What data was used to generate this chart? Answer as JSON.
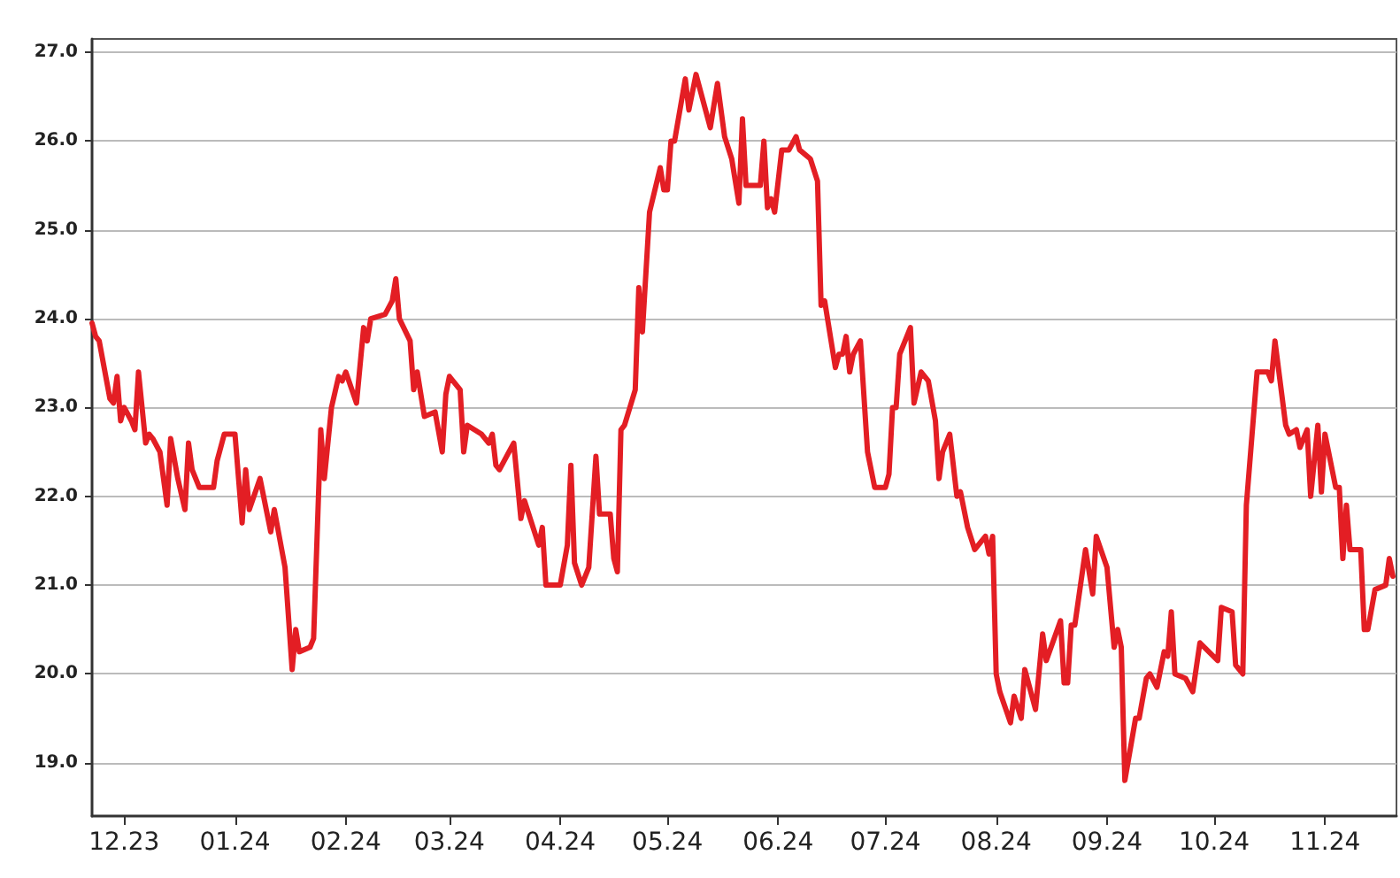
{
  "chart_data": {
    "type": "line",
    "marker": "none",
    "line_style": "solid",
    "grid": "y",
    "xlim": [
      "2023-11-22",
      "2024-11-21"
    ],
    "ylim": [
      18.4,
      27.15
    ],
    "yticks": [
      {
        "value": 19,
        "label": "19.0"
      },
      {
        "value": 20,
        "label": "20.0"
      },
      {
        "value": 21,
        "label": "21.0"
      },
      {
        "value": 22,
        "label": "22.0"
      },
      {
        "value": 23,
        "label": "23.0"
      },
      {
        "value": 24,
        "label": "24.0"
      },
      {
        "value": 25,
        "label": "25.0"
      },
      {
        "value": 26,
        "label": "26.0"
      },
      {
        "value": 27,
        "label": "27.0"
      }
    ],
    "xticks": [
      {
        "value": "2023-12-01",
        "label": "12.23"
      },
      {
        "value": "2024-01-01",
        "label": "01.24"
      },
      {
        "value": "2024-02-01",
        "label": "02.24"
      },
      {
        "value": "2024-03-01",
        "label": "03.24"
      },
      {
        "value": "2024-04-01",
        "label": "04.24"
      },
      {
        "value": "2024-05-01",
        "label": "05.24"
      },
      {
        "value": "2024-06-01",
        "label": "06.24"
      },
      {
        "value": "2024-07-01",
        "label": "07.24"
      },
      {
        "value": "2024-08-01",
        "label": "08.24"
      },
      {
        "value": "2024-09-01",
        "label": "09.24"
      },
      {
        "value": "2024-10-01",
        "label": "10.24"
      },
      {
        "value": "2024-11-01",
        "label": "11.24"
      }
    ],
    "series": [
      {
        "color": "#e31e24",
        "x": [
          "2023-11-22",
          "2023-11-23",
          "2023-11-24",
          "2023-11-27",
          "2023-11-28",
          "2023-11-29",
          "2023-11-30",
          "2023-12-01",
          "2023-12-03",
          "2023-12-04",
          "2023-12-05",
          "2023-12-07",
          "2023-12-08",
          "2023-12-09",
          "2023-12-11",
          "2023-12-13",
          "2023-12-14",
          "2023-12-16",
          "2023-12-18",
          "2023-12-19",
          "2023-12-20",
          "2023-12-22",
          "2023-12-26",
          "2023-12-27",
          "2023-12-29",
          "2024-01-01",
          "2024-01-03",
          "2024-01-04",
          "2024-01-05",
          "2024-01-08",
          "2024-01-11",
          "2024-01-12",
          "2024-01-15",
          "2024-01-17",
          "2024-01-18",
          "2024-01-19",
          "2024-01-22",
          "2024-01-23",
          "2024-01-25",
          "2024-01-26",
          "2024-01-28",
          "2024-01-30",
          "2024-01-31",
          "2024-02-01",
          "2024-02-04",
          "2024-02-06",
          "2024-02-07",
          "2024-02-08",
          "2024-02-12",
          "2024-02-14",
          "2024-02-15",
          "2024-02-16",
          "2024-02-19",
          "2024-02-20",
          "2024-02-21",
          "2024-02-23",
          "2024-02-26",
          "2024-02-28",
          "2024-02-29",
          "2024-03-01",
          "2024-03-04",
          "2024-03-05",
          "2024-03-06",
          "2024-03-10",
          "2024-03-12",
          "2024-03-13",
          "2024-03-14",
          "2024-03-15",
          "2024-03-19",
          "2024-03-21",
          "2024-03-22",
          "2024-03-26",
          "2024-03-27",
          "2024-03-28",
          "2024-04-01",
          "2024-04-03",
          "2024-04-04",
          "2024-04-05",
          "2024-04-07",
          "2024-04-09",
          "2024-04-11",
          "2024-04-12",
          "2024-04-15",
          "2024-04-16",
          "2024-04-17",
          "2024-04-18",
          "2024-04-19",
          "2024-04-22",
          "2024-04-23",
          "2024-04-24",
          "2024-04-26",
          "2024-04-29",
          "2024-04-30",
          "2024-05-01",
          "2024-05-02",
          "2024-05-03",
          "2024-05-06",
          "2024-05-07",
          "2024-05-09",
          "2024-05-13",
          "2024-05-15",
          "2024-05-17",
          "2024-05-19",
          "2024-05-21",
          "2024-05-22",
          "2024-05-23",
          "2024-05-27",
          "2024-05-28",
          "2024-05-29",
          "2024-05-30",
          "2024-05-31",
          "2024-06-02",
          "2024-06-04",
          "2024-06-06",
          "2024-06-07",
          "2024-06-10",
          "2024-06-12",
          "2024-06-13",
          "2024-06-14",
          "2024-06-17",
          "2024-06-18",
          "2024-06-19",
          "2024-06-20",
          "2024-06-21",
          "2024-06-22",
          "2024-06-24",
          "2024-06-26",
          "2024-06-28",
          "2024-07-01",
          "2024-07-02",
          "2024-07-03",
          "2024-07-04",
          "2024-07-05",
          "2024-07-08",
          "2024-07-09",
          "2024-07-11",
          "2024-07-13",
          "2024-07-15",
          "2024-07-16",
          "2024-07-17",
          "2024-07-19",
          "2024-07-21",
          "2024-07-22",
          "2024-07-24",
          "2024-07-26",
          "2024-07-29",
          "2024-07-30",
          "2024-07-31",
          "2024-08-01",
          "2024-08-02",
          "2024-08-05",
          "2024-08-06",
          "2024-08-08",
          "2024-08-09",
          "2024-08-12",
          "2024-08-14",
          "2024-08-15",
          "2024-08-19",
          "2024-08-20",
          "2024-08-21",
          "2024-08-22",
          "2024-08-23",
          "2024-08-26",
          "2024-08-28",
          "2024-08-29",
          "2024-09-01",
          "2024-09-03",
          "2024-09-04",
          "2024-09-05",
          "2024-09-06",
          "2024-09-09",
          "2024-09-10",
          "2024-09-12",
          "2024-09-13",
          "2024-09-15",
          "2024-09-17",
          "2024-09-18",
          "2024-09-19",
          "2024-09-20",
          "2024-09-23",
          "2024-09-25",
          "2024-09-27",
          "2024-10-02",
          "2024-10-03",
          "2024-10-06",
          "2024-10-07",
          "2024-10-09",
          "2024-10-10",
          "2024-10-13",
          "2024-10-16",
          "2024-10-17",
          "2024-10-18",
          "2024-10-21",
          "2024-10-22",
          "2024-10-24",
          "2024-10-25",
          "2024-10-27",
          "2024-10-28",
          "2024-10-30",
          "2024-10-31",
          "2024-11-01",
          "2024-11-04",
          "2024-11-05",
          "2024-11-06",
          "2024-11-07",
          "2024-11-08",
          "2024-11-11",
          "2024-11-12",
          "2024-11-13",
          "2024-11-15",
          "2024-11-18",
          "2024-11-19",
          "2024-11-20"
        ],
        "values": [
          23.95,
          23.8,
          23.75,
          23.1,
          23.05,
          23.35,
          22.85,
          23.0,
          22.85,
          22.75,
          23.4,
          22.6,
          22.7,
          22.65,
          22.5,
          21.9,
          22.65,
          22.2,
          21.85,
          22.6,
          22.3,
          22.1,
          22.1,
          22.4,
          22.7,
          22.7,
          21.7,
          22.3,
          21.85,
          22.2,
          21.6,
          21.85,
          21.2,
          20.05,
          20.5,
          20.25,
          20.3,
          20.4,
          22.75,
          22.2,
          23.0,
          23.35,
          23.3,
          23.4,
          23.05,
          23.9,
          23.75,
          24.0,
          24.05,
          24.2,
          24.45,
          24.0,
          23.75,
          23.2,
          23.4,
          22.9,
          22.95,
          22.5,
          23.15,
          23.35,
          23.2,
          22.5,
          22.8,
          22.7,
          22.6,
          22.7,
          22.35,
          22.3,
          22.6,
          21.75,
          21.95,
          21.45,
          21.65,
          21.0,
          21.0,
          21.45,
          22.35,
          21.25,
          21.0,
          21.2,
          22.45,
          21.8,
          21.8,
          21.3,
          21.15,
          22.75,
          22.8,
          23.2,
          24.35,
          23.85,
          25.2,
          25.7,
          25.45,
          25.45,
          26.0,
          26.0,
          26.7,
          26.35,
          26.75,
          26.15,
          26.65,
          26.05,
          25.8,
          25.3,
          26.25,
          25.5,
          25.5,
          26.0,
          25.25,
          25.35,
          25.2,
          25.9,
          25.9,
          26.05,
          25.9,
          25.8,
          25.55,
          24.15,
          24.2,
          23.45,
          23.6,
          23.6,
          23.8,
          23.4,
          23.6,
          23.75,
          22.5,
          22.1,
          22.1,
          22.25,
          23.0,
          23.0,
          23.6,
          23.9,
          23.05,
          23.4,
          23.3,
          22.85,
          22.2,
          22.5,
          22.7,
          22.0,
          22.05,
          21.65,
          21.4,
          21.55,
          21.35,
          21.55,
          20.0,
          19.8,
          19.45,
          19.75,
          19.5,
          20.05,
          19.6,
          20.45,
          20.15,
          20.6,
          19.9,
          19.9,
          20.55,
          20.55,
          21.4,
          20.9,
          21.55,
          21.2,
          20.3,
          20.5,
          20.3,
          18.8,
          19.5,
          19.5,
          19.95,
          20.0,
          19.85,
          20.25,
          20.2,
          20.7,
          20.0,
          19.95,
          19.8,
          20.35,
          20.15,
          20.75,
          20.7,
          20.1,
          20.0,
          21.9,
          23.4,
          23.4,
          23.3,
          23.75,
          22.8,
          22.7,
          22.75,
          22.55,
          22.75,
          22.0,
          22.8,
          22.05,
          22.7,
          22.1,
          22.1,
          21.3,
          21.9,
          21.4,
          21.4,
          20.5,
          20.5,
          20.95,
          21.0,
          21.3,
          21.1
        ]
      }
    ]
  }
}
